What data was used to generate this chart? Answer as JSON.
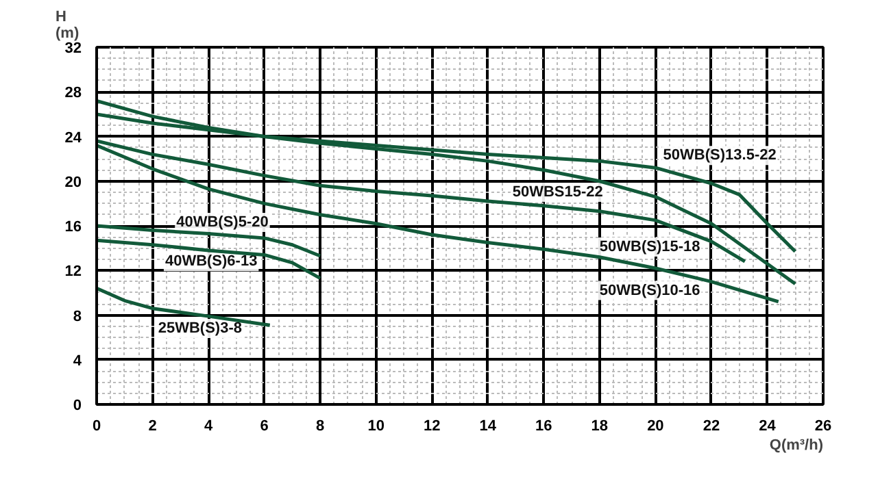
{
  "chart_data": {
    "type": "line",
    "xlabel": "Q(m³/h)",
    "ylabel": "H\n(m)",
    "xlim": [
      0,
      26
    ],
    "ylim": [
      0,
      32
    ],
    "xticks": [
      0,
      2,
      4,
      6,
      8,
      10,
      12,
      14,
      16,
      18,
      20,
      22,
      24,
      26
    ],
    "yticks": [
      0,
      4,
      8,
      12,
      16,
      20,
      24,
      28,
      32
    ],
    "grid": true,
    "marker": "none",
    "line_style": "solid",
    "series": [
      {
        "name": "50WB(S)13.5-22",
        "color": "#125a3a",
        "x": [
          0,
          2,
          4,
          6,
          8,
          10,
          12,
          14,
          16,
          18,
          20,
          22,
          23,
          24,
          25
        ],
        "values": [
          26,
          25.2,
          24.6,
          24,
          23.6,
          23.2,
          22.8,
          22.4,
          22.1,
          21.8,
          21.2,
          19.8,
          18.8,
          16.2,
          13.7
        ]
      },
      {
        "name": "50WBS15-22",
        "color": "#125a3a",
        "x": [
          0,
          2,
          4,
          6,
          8,
          10,
          12,
          14,
          16,
          18,
          20,
          22,
          24,
          25
        ],
        "values": [
          27.2,
          25.8,
          24.8,
          24,
          23.4,
          22.9,
          22.4,
          21.8,
          21,
          20,
          18.6,
          16.2,
          12.6,
          10.8
        ]
      },
      {
        "name": "50WB(S)15-18",
        "color": "#125a3a",
        "x": [
          0,
          2,
          4,
          6,
          8,
          10,
          12,
          14,
          16,
          18,
          20,
          22,
          23.2
        ],
        "values": [
          23.6,
          22.4,
          21.5,
          20.5,
          19.6,
          19.1,
          18.7,
          18.2,
          17.8,
          17.3,
          16.5,
          14.6,
          12.8
        ]
      },
      {
        "name": "50WB(S)10-16",
        "color": "#125a3a",
        "x": [
          0,
          2,
          4,
          6,
          8,
          10,
          12,
          14,
          16,
          18,
          20,
          22,
          24.4
        ],
        "values": [
          23.2,
          21.1,
          19.3,
          18,
          17,
          16.2,
          15.2,
          14.5,
          13.9,
          13.2,
          12.2,
          11,
          9.2
        ]
      },
      {
        "name": "40WB(S)5-20",
        "color": "#125a3a",
        "x": [
          0,
          2,
          4,
          6,
          7,
          8
        ],
        "values": [
          16,
          15.6,
          15.3,
          14.9,
          14.3,
          13.3
        ]
      },
      {
        "name": "40WB(S)6-13",
        "color": "#125a3a",
        "x": [
          0,
          2,
          4,
          6,
          7,
          8
        ],
        "values": [
          14.7,
          14.3,
          13.8,
          13.4,
          12.7,
          11.3
        ]
      },
      {
        "name": "25WB(S)3-8",
        "color": "#125a3a",
        "x": [
          0,
          1,
          2,
          4,
          6.2
        ],
        "values": [
          10.4,
          9.3,
          8.6,
          7.9,
          7.1
        ]
      }
    ]
  }
}
